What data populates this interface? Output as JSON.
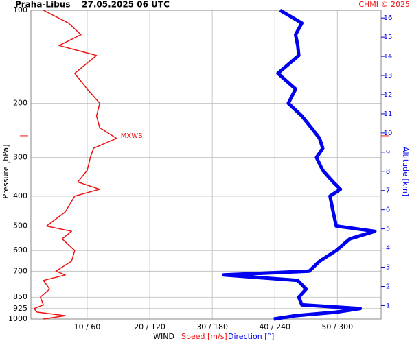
{
  "chart_data": {
    "type": "line",
    "title": "Praha-Libus    27.05.2025 06 UTC",
    "credit": "CHMI © 2025",
    "y_label": "Pressure [hPa]",
    "y2_label": "Altitude [km]",
    "x_label": "WIND",
    "pressure": [
      1000,
      975,
      950,
      925,
      900,
      850,
      800,
      750,
      720,
      700,
      650,
      600,
      550,
      520,
      500,
      450,
      400,
      380,
      360,
      330,
      300,
      280,
      260,
      240,
      220,
      200,
      180,
      160,
      140,
      130,
      120,
      110,
      100
    ],
    "series": [
      {
        "name": "Speed [m/s]",
        "color": "#ee1111",
        "width": 1.5,
        "values": [
          3,
          6.5,
          2,
          1.5,
          3,
          2.5,
          4,
          3,
          6.5,
          5,
          7.5,
          8,
          6,
          7.5,
          3.5,
          6.5,
          8,
          12,
          8.5,
          10,
          10.5,
          11,
          14.7,
          12,
          11.5,
          12,
          10,
          8,
          11.5,
          5.5,
          9,
          7,
          3
        ]
      },
      {
        "name": "Direction [°]",
        "color": "#0000ee",
        "width": 5,
        "axis": "x2",
        "values": [
          239,
          260,
          299,
          322,
          266,
          263,
          270,
          262,
          191,
          273,
          283,
          299,
          312,
          336,
          299,
          296,
          293,
          303,
          296,
          286,
          280,
          286,
          283,
          275,
          266,
          253,
          260,
          243,
          263,
          262,
          260,
          266,
          245
        ]
      }
    ],
    "annotation": {
      "text": "MXWS",
      "pressure": 255,
      "speed": 14.7
    },
    "ylim": [
      100,
      1000
    ],
    "log_y": true,
    "yticks": [
      100,
      200,
      300,
      400,
      500,
      600,
      700,
      850,
      925,
      1000
    ],
    "xlim": [
      1,
      57
    ],
    "x2lim": [
      6,
      342
    ],
    "xticks": [
      {
        "value": 10,
        "label": "10 / 60"
      },
      {
        "value": 20,
        "label": "20 / 120"
      },
      {
        "value": 30,
        "label": "30 / 180"
      },
      {
        "value": 40,
        "label": "40 / 240"
      },
      {
        "value": 50,
        "label": "50 / 300"
      }
    ],
    "y2lim": [
      0.3,
      16.4
    ],
    "y2ticks": [
      1,
      2,
      3,
      4,
      5,
      6,
      7,
      8,
      9,
      10,
      11,
      12,
      13,
      14,
      15,
      16
    ],
    "grid": true
  }
}
